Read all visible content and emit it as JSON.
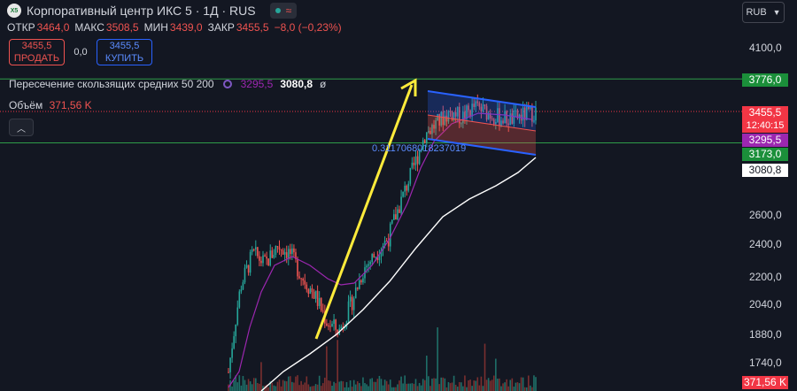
{
  "header": {
    "title": "Корпоративный центр ИКС 5 · 1Д · RUS",
    "logo_text": "X5",
    "status_icons": [
      "market-open-dot",
      "wave-icon"
    ]
  },
  "ohlc": {
    "open_label": "ОТКР",
    "open": "3464,0",
    "high_label": "МАКС",
    "high": "3508,5",
    "low_label": "МИН",
    "low": "3439,0",
    "close_label": "ЗАКР",
    "close": "3455,5",
    "change": "−8,0 (−0,23%)"
  },
  "trade": {
    "sell_price": "3455,5",
    "sell_label": "ПРОДАТЬ",
    "spread": "0,0",
    "buy_price": "3455,5",
    "buy_label": "КУПИТЬ"
  },
  "indicator": {
    "name": "Пересечение скользящих средних 50 200",
    "ma50": "3295,5",
    "ma200": "3080,8",
    "extra": "ø"
  },
  "volume": {
    "label": "Объём",
    "value": "371,56 K"
  },
  "collapse_icon": "chevron-up-icon",
  "currency": {
    "code": "RUB",
    "icon": "chevron-down-icon"
  },
  "fib_label": "0.3117068018237019",
  "price_labels": [
    {
      "text": "3776,0",
      "bg": "#1b8f3a",
      "color": "#ffffff"
    },
    {
      "text": "3455,5",
      "bg": "#f23645",
      "color": "#ffffff"
    },
    {
      "text": "12:40:15",
      "bg": "#f23645",
      "color": "#ffffff"
    },
    {
      "text": "3295,5",
      "bg": "#9c27b0",
      "color": "#ffffff"
    },
    {
      "text": "3173,0",
      "bg": "#1b8f3a",
      "color": "#ffffff"
    },
    {
      "text": "3080,8",
      "bg": "#ffffff",
      "color": "#131722"
    },
    {
      "text": "371,56 K",
      "bg": "#f23645",
      "color": "#ffffff"
    }
  ],
  "chart_data": {
    "type": "candlestick",
    "y_scale": "log",
    "y_ticks": [
      "4100,0",
      "2600,0",
      "2400,0",
      "2200,0",
      "2040,0",
      "1880,0",
      "1740,0"
    ],
    "y_tick_values": [
      4100,
      2600,
      2400,
      2200,
      2040,
      1880,
      1740
    ],
    "ylim": [
      1650,
      4500
    ],
    "series": [
      {
        "name": "price",
        "color_up": "#26a69a",
        "color_down": "#ef5350",
        "close_path": [
          1700,
          2150,
          2350,
          2280,
          2400,
          2350,
          2200,
          2100,
          1950,
          1900,
          2050,
          2250,
          2350,
          2450,
          2700,
          2950,
          3250,
          3350,
          3450,
          3400,
          3500,
          3450,
          3400,
          3380,
          3420,
          3455.5
        ]
      },
      {
        "name": "MA 50",
        "color": "#9c27b0",
        "last": 3295.5
      },
      {
        "name": "MA 200",
        "color": "#ffffff",
        "last": 3080.8
      }
    ],
    "horizontal_levels": [
      3776.0,
      3173.0
    ],
    "current_price": 3455.5
  }
}
